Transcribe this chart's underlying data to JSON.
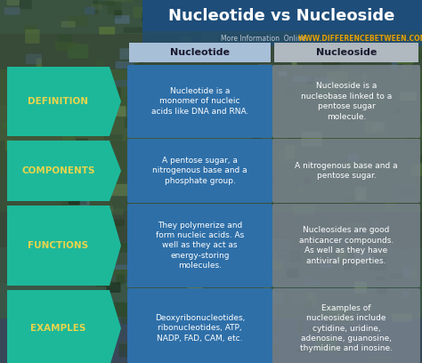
{
  "title": "Nucleotide vs Nucleoside",
  "subtitle_gray": "More Information  Online",
  "subtitle_url": "WWW.DIFFERENCEBETWEEN.COM",
  "col1_header": "Nucleotide",
  "col2_header": "Nucleoside",
  "rows": [
    {
      "label": "DEFINITION",
      "col1": "Nucleotide is a\nmonomer of nucleic\nacids like DNA and RNA.",
      "col2": "Nucleoside is a\nnucleobase linked to a\npentose sugar\nmolecule."
    },
    {
      "label": "COMPONENTS",
      "col1": "A pentose sugar, a\nnitrogenous base and a\nphosphate group.",
      "col2": "A nitrogenous base and a\npentose sugar."
    },
    {
      "label": "FUNCTIONS",
      "col1": "They polymerize and\nform nucleic acids. As\nwell as they act as\nenergy-storing\nmolecules.",
      "col2": "Nucleosides are good\nanticancer compounds.\nAs well as they have\nantiviral properties."
    },
    {
      "label": "EXAMPLES",
      "col1": "Deoxyribonucleotides,\nribonucleotides, ATP,\nNADP, FAD, CAM, etc.",
      "col2": "Examples of\nnucleosides include\ncytidine, uridine,\nadenosine, guanosine,\nthymidine and inosine."
    }
  ],
  "colors": {
    "title_bg": "#1e4d7a",
    "title_text": "#ffffff",
    "header_bg_col1": "#a8bfd8",
    "header_bg_col2": "#b0b8c0",
    "header_text": "#1a1a2e",
    "label_bg": "#1db89a",
    "label_text": "#e8d44d",
    "col1_bg": "#2e6fa8",
    "col2_bg": "#7a8590",
    "col1_text": "#ffffff",
    "col2_text": "#ffffff",
    "subtitle_gray": "#c0c8d0",
    "subtitle_url": "#e8a000",
    "bg_top": "#3a5c3a",
    "bg_mid": "#4a6840",
    "bg_bottom": "#384858"
  },
  "figsize": [
    4.74,
    4.08
  ],
  "dpi": 100
}
